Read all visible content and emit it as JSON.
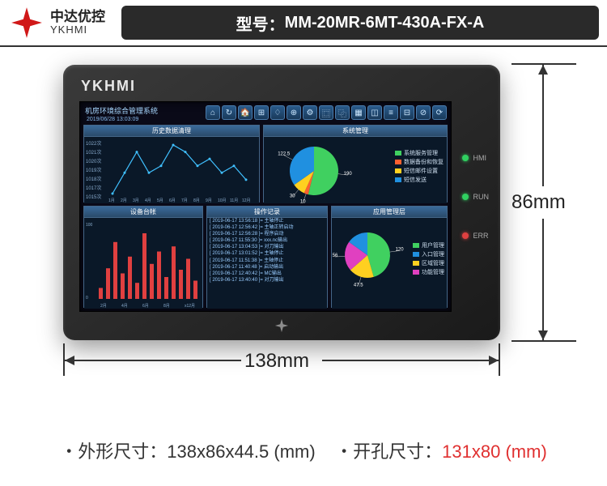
{
  "header": {
    "brand_cn": "中达优控",
    "brand_en": "YKHMI",
    "model_prefix": "型号：",
    "model": "MM-20MR-6MT-430A-FX-A",
    "logo_color": "#d01818"
  },
  "device": {
    "brand": "YKHMI",
    "leds": [
      {
        "label": "HMI",
        "color": "#30d060"
      },
      {
        "label": "RUN",
        "color": "#30d060"
      },
      {
        "label": "ERR",
        "color": "#e04040"
      }
    ]
  },
  "dimensions": {
    "width_label": "138mm",
    "height_label": "86mm"
  },
  "specs": {
    "outline_label": "外形尺寸：",
    "outline_value": "138x86x44.5 (mm)",
    "cutout_label": "开孔尺寸：",
    "cutout_value": "131x80 (mm)"
  },
  "screen": {
    "title": "机房环境综合管理系统",
    "date": "2019/06/28  13:03:09",
    "toolbar_glyphs": [
      "⌂",
      "↻",
      "🏠",
      "⊞",
      "♢",
      "⊕",
      "⚙",
      "⿴",
      "⿻",
      "▦",
      "◫",
      "≡",
      "⊟",
      "⊘",
      "⟳"
    ],
    "panels": {
      "history": {
        "title": "历史数据清理",
        "y_labels": [
          "1022次",
          "1021次",
          "1020次",
          "1019次",
          "1018次",
          "1017次",
          "1015次"
        ],
        "x_labels": [
          "1月",
          "2月",
          "3月",
          "4月",
          "5月",
          "6月",
          "7月",
          "8月",
          "9月",
          "10月",
          "11月",
          "12月"
        ],
        "line_color": "#40c0ff",
        "points": [
          1015,
          1018,
          1021,
          1018,
          1019,
          1022,
          1021,
          1019,
          1020,
          1018,
          1019,
          1017
        ]
      },
      "system": {
        "title": "系统管理",
        "pie": [
          {
            "label": "190",
            "value": 190,
            "color": "#40d060"
          },
          {
            "label": "10",
            "value": 10,
            "color": "#ff6030"
          },
          {
            "label": "30",
            "value": 30,
            "color": "#ffd020"
          },
          {
            "label": "122.5",
            "value": 122.5,
            "color": "#2090e0"
          }
        ],
        "legend": [
          {
            "label": "系统服务管理",
            "color": "#40d060"
          },
          {
            "label": "数据备份和恢复",
            "color": "#ff6030"
          },
          {
            "label": "短信邮件设置",
            "color": "#ffd020"
          },
          {
            "label": "短信发送",
            "color": "#2090e0"
          }
        ]
      },
      "ledger": {
        "title": "设备台帐",
        "y_axis": "100(台)  80  60  40  20  0  (台数)",
        "x_labels": [
          "2月",
          "4月",
          "6月",
          "8月",
          "x12月"
        ],
        "bars": [
          15,
          42,
          78,
          35,
          58,
          22,
          90,
          48,
          65,
          30,
          72,
          40,
          55,
          25
        ],
        "bar_color": "#e04040"
      },
      "log": {
        "title": "操作记录",
        "lines": [
          "[ 2019-06-17 13:56:18 ]= 主轴停止",
          "[ 2019-06-17 12:56:42 ]= 主轴正转启动",
          "[ 2019-06-17 12:56:28 ]= 程序启动",
          "[ 2019-06-17 11:55:30 ]= xxx.nc输出",
          "[ 2019-06-17 13:04:53 ]= 对刀输出",
          "[ 2019-06-17 13:01:52 ]= 主轴停止",
          "[ 2019-06-17 11:51:38 ]= 主轴停止",
          "[ 2019-06-17 11:40:48 ]= 启动输出",
          "[ 2019-06-17 12:40:42 ]= MC输出",
          "[ 2019-06-17 13:40:40 ]= 对刀输出"
        ]
      },
      "app": {
        "title": "应用管理层",
        "pie": [
          {
            "label": "120",
            "value": 120,
            "color": "#40d060"
          },
          {
            "label": "47.5",
            "value": 47.5,
            "color": "#ffd020"
          },
          {
            "label": "56",
            "value": 56,
            "color": "#e040c0"
          },
          {
            "label": "",
            "value": 40,
            "color": "#2090e0"
          }
        ],
        "legend": [
          {
            "label": "用户管理",
            "color": "#40d060"
          },
          {
            "label": "入口管理",
            "color": "#2090e0"
          },
          {
            "label": "区域管理",
            "color": "#ffd020"
          },
          {
            "label": "功能管理",
            "color": "#e040c0"
          }
        ]
      }
    }
  }
}
